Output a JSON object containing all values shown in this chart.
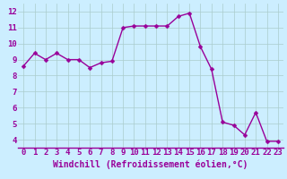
{
  "x": [
    0,
    1,
    2,
    3,
    4,
    5,
    6,
    7,
    8,
    9,
    10,
    11,
    12,
    13,
    14,
    15,
    16,
    17,
    18,
    19,
    20,
    21,
    22,
    23
  ],
  "y": [
    8.6,
    9.4,
    9.0,
    9.4,
    9.0,
    9.0,
    8.5,
    8.8,
    8.9,
    11.0,
    11.1,
    11.1,
    11.1,
    11.1,
    11.7,
    11.9,
    9.8,
    8.4,
    5.1,
    4.9,
    4.3,
    5.7,
    3.9,
    3.9
  ],
  "line_color": "#990099",
  "marker_color": "#990099",
  "bg_color": "#cceeff",
  "grid_color": "#aacccc",
  "xlabel": "Windchill (Refroidissement éolien,°C)",
  "xlabel_color": "#990099",
  "tick_color": "#990099",
  "label_color": "#990099",
  "border_color": "#990099",
  "ylim": [
    3.5,
    12.5
  ],
  "xlim": [
    -0.5,
    23.5
  ],
  "yticks": [
    4,
    5,
    6,
    7,
    8,
    9,
    10,
    11,
    12
  ],
  "xtick_labels": [
    "0",
    "1",
    "2",
    "3",
    "4",
    "5",
    "6",
    "7",
    "8",
    "9",
    "10",
    "11",
    "12",
    "13",
    "14",
    "15",
    "16",
    "17",
    "18",
    "19",
    "20",
    "21",
    "22",
    "23"
  ],
  "marker_size": 2.5,
  "line_width": 1.0,
  "tick_fontsize": 6.5,
  "xlabel_fontsize": 7.0
}
